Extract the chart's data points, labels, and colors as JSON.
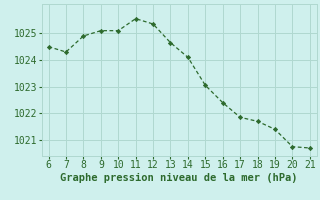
{
  "x": [
    6,
    7,
    8,
    9,
    10,
    11,
    12,
    13,
    14,
    15,
    16,
    17,
    18,
    19,
    20,
    21
  ],
  "y": [
    1024.5,
    1024.3,
    1024.9,
    1025.1,
    1025.1,
    1025.55,
    1025.35,
    1024.65,
    1024.1,
    1023.05,
    1022.4,
    1021.85,
    1021.7,
    1021.4,
    1020.75,
    1020.7
  ],
  "line_color": "#2d6a2d",
  "marker": "D",
  "marker_size": 2.2,
  "bg_color": "#cff0ed",
  "grid_color": "#b0d8d0",
  "xlabel": "Graphe pression niveau de la mer (hPa)",
  "xlabel_color": "#2d6a2d",
  "xlabel_fontsize": 7.5,
  "tick_color": "#2d6a2d",
  "tick_fontsize": 7,
  "ylim": [
    1020.4,
    1026.1
  ],
  "xlim": [
    5.6,
    21.4
  ],
  "yticks": [
    1021,
    1022,
    1023,
    1024,
    1025
  ],
  "xticks": [
    6,
    7,
    8,
    9,
    10,
    11,
    12,
    13,
    14,
    15,
    16,
    17,
    18,
    19,
    20,
    21
  ]
}
